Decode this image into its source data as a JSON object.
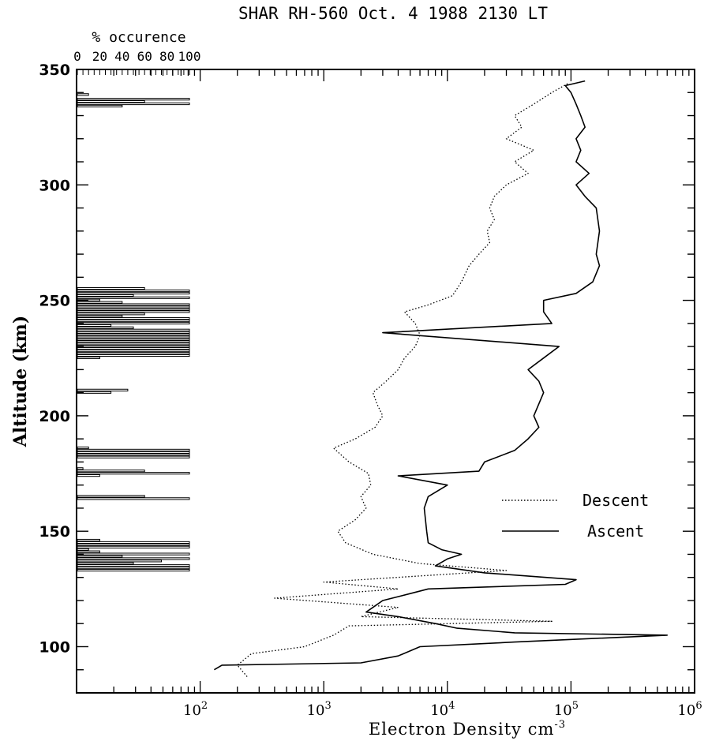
{
  "colors": {
    "ink": "#000000",
    "background": "#ffffff"
  },
  "chart_data": [
    {
      "type": "line",
      "title": "SHAR RH-560 Oct. 4 1988 2130 LT",
      "xlabel": "Electron Density cm",
      "xlabel_superscript": "-3",
      "ylabel": "Altitude (km)",
      "xscale": "log",
      "xlim": [
        10,
        1000000
      ],
      "ylim": [
        80,
        350
      ],
      "x_ticks": [
        {
          "value": 100,
          "base": "10",
          "exp": "2"
        },
        {
          "value": 1000,
          "base": "10",
          "exp": "3"
        },
        {
          "value": 10000,
          "base": "10",
          "exp": "4"
        },
        {
          "value": 100000,
          "base": "10",
          "exp": "5"
        },
        {
          "value": 1000000,
          "base": "10",
          "exp": "6"
        }
      ],
      "y_ticks": [
        {
          "value": 100,
          "label": "100"
        },
        {
          "value": 150,
          "label": "150"
        },
        {
          "value": 200,
          "label": "200"
        },
        {
          "value": 250,
          "label": "250"
        },
        {
          "value": 300,
          "label": "300"
        },
        {
          "value": 350,
          "label": "350"
        }
      ],
      "y_minor_step": 10,
      "legend_position": "right",
      "series": [
        {
          "name": "Descent",
          "style": "dotted",
          "points": [
            [
              240,
              87
            ],
            [
              200,
              92
            ],
            [
              260,
              97
            ],
            [
              700,
              100
            ],
            [
              1200,
              105
            ],
            [
              1600,
              109
            ],
            [
              70000,
              111
            ],
            [
              2000,
              113
            ],
            [
              4000,
              117
            ],
            [
              400,
              121
            ],
            [
              4000,
              125
            ],
            [
              1000,
              128
            ],
            [
              30000,
              133
            ],
            [
              6000,
              136
            ],
            [
              2500,
              140
            ],
            [
              1500,
              145
            ],
            [
              1300,
              150
            ],
            [
              1800,
              155
            ],
            [
              2200,
              160
            ],
            [
              2000,
              165
            ],
            [
              2400,
              170
            ],
            [
              2300,
              175
            ],
            [
              1600,
              180
            ],
            [
              1200,
              186
            ],
            [
              1800,
              190
            ],
            [
              2600,
              195
            ],
            [
              3000,
              200
            ],
            [
              2700,
              205
            ],
            [
              2500,
              210
            ],
            [
              3200,
              215
            ],
            [
              4000,
              220
            ],
            [
              4500,
              225
            ],
            [
              5500,
              230
            ],
            [
              6000,
              235
            ],
            [
              5500,
              240
            ],
            [
              4500,
              245
            ],
            [
              7000,
              248
            ],
            [
              11000,
              252
            ],
            [
              13000,
              258
            ],
            [
              15000,
              265
            ],
            [
              18000,
              270
            ],
            [
              22000,
              275
            ],
            [
              21000,
              280
            ],
            [
              24000,
              285
            ],
            [
              22000,
              290
            ],
            [
              24000,
              295
            ],
            [
              30000,
              300
            ],
            [
              45000,
              305
            ],
            [
              35000,
              310
            ],
            [
              50000,
              315
            ],
            [
              30000,
              320
            ],
            [
              40000,
              325
            ],
            [
              35000,
              330
            ],
            [
              50000,
              335
            ],
            [
              70000,
              340
            ],
            [
              95000,
              344
            ]
          ]
        },
        {
          "name": "Ascent",
          "style": "solid",
          "points": [
            [
              130,
              90
            ],
            [
              150,
              92
            ],
            [
              2000,
              93
            ],
            [
              4000,
              96
            ],
            [
              6000,
              100
            ],
            [
              35000,
              102
            ],
            [
              600000,
              105
            ],
            [
              35000,
              106
            ],
            [
              12000,
              108
            ],
            [
              8000,
              110
            ],
            [
              4000,
              113
            ],
            [
              2200,
              115
            ],
            [
              2500,
              117
            ],
            [
              3000,
              120
            ],
            [
              5000,
              123
            ],
            [
              7000,
              125
            ],
            [
              90000,
              127
            ],
            [
              110000,
              129
            ],
            [
              20000,
              132
            ],
            [
              8000,
              135
            ],
            [
              10000,
              138
            ],
            [
              13000,
              140
            ],
            [
              9000,
              142
            ],
            [
              7000,
              145
            ],
            [
              6800,
              150
            ],
            [
              6500,
              160
            ],
            [
              7000,
              165
            ],
            [
              10000,
              170
            ],
            [
              4000,
              174
            ],
            [
              18000,
              176
            ],
            [
              20000,
              180
            ],
            [
              35000,
              185
            ],
            [
              45000,
              190
            ],
            [
              55000,
              195
            ],
            [
              50000,
              200
            ],
            [
              60000,
              210
            ],
            [
              55000,
              215
            ],
            [
              45000,
              220
            ],
            [
              60000,
              225
            ],
            [
              80000,
              230
            ],
            [
              3000,
              236
            ],
            [
              70000,
              240
            ],
            [
              60000,
              245
            ],
            [
              60000,
              250
            ],
            [
              110000,
              253
            ],
            [
              150000,
              258
            ],
            [
              170000,
              265
            ],
            [
              160000,
              270
            ],
            [
              170000,
              280
            ],
            [
              160000,
              290
            ],
            [
              130000,
              295
            ],
            [
              110000,
              300
            ],
            [
              140000,
              305
            ],
            [
              110000,
              310
            ],
            [
              120000,
              315
            ],
            [
              110000,
              320
            ],
            [
              130000,
              325
            ],
            [
              120000,
              330
            ],
            [
              110000,
              335
            ],
            [
              100000,
              340
            ],
            [
              90000,
              343
            ],
            [
              130000,
              345
            ]
          ]
        }
      ]
    },
    {
      "type": "bar",
      "orientation": "horizontal",
      "title": "% occurence",
      "x_tick_labels": [
        "0",
        "20",
        "40",
        "60",
        "80",
        "100"
      ],
      "xlim": [
        0,
        100
      ],
      "ylim": [
        80,
        350
      ],
      "bars": [
        [
          133,
          100
        ],
        [
          134,
          100
        ],
        [
          135,
          100
        ],
        [
          136,
          50
        ],
        [
          137,
          75
        ],
        [
          138,
          100
        ],
        [
          139,
          40
        ],
        [
          140,
          100
        ],
        [
          141,
          20
        ],
        [
          142,
          10
        ],
        [
          143,
          100
        ],
        [
          144,
          100
        ],
        [
          145,
          100
        ],
        [
          146,
          20
        ],
        [
          164,
          100
        ],
        [
          165,
          60
        ],
        [
          174,
          20
        ],
        [
          175,
          100
        ],
        [
          176,
          60
        ],
        [
          177,
          5
        ],
        [
          182,
          100
        ],
        [
          183,
          100
        ],
        [
          184,
          100
        ],
        [
          185,
          100
        ],
        [
          186,
          10
        ],
        [
          210,
          30
        ],
        [
          211,
          45
        ],
        [
          225,
          20
        ],
        [
          226,
          100
        ],
        [
          227,
          100
        ],
        [
          228,
          100
        ],
        [
          229,
          100
        ],
        [
          230,
          100
        ],
        [
          231,
          100
        ],
        [
          232,
          100
        ],
        [
          233,
          100
        ],
        [
          234,
          100
        ],
        [
          235,
          100
        ],
        [
          236,
          100
        ],
        [
          237,
          100
        ],
        [
          238,
          50
        ],
        [
          239,
          30
        ],
        [
          240,
          100
        ],
        [
          241,
          100
        ],
        [
          242,
          100
        ],
        [
          243,
          40
        ],
        [
          244,
          60
        ],
        [
          245,
          100
        ],
        [
          246,
          100
        ],
        [
          247,
          100
        ],
        [
          248,
          100
        ],
        [
          249,
          40
        ],
        [
          250,
          20
        ],
        [
          251,
          100
        ],
        [
          252,
          50
        ],
        [
          253,
          100
        ],
        [
          254,
          100
        ],
        [
          255,
          60
        ],
        [
          334,
          40
        ],
        [
          335,
          100
        ],
        [
          336,
          60
        ],
        [
          337,
          100
        ],
        [
          339,
          10
        ]
      ]
    }
  ]
}
